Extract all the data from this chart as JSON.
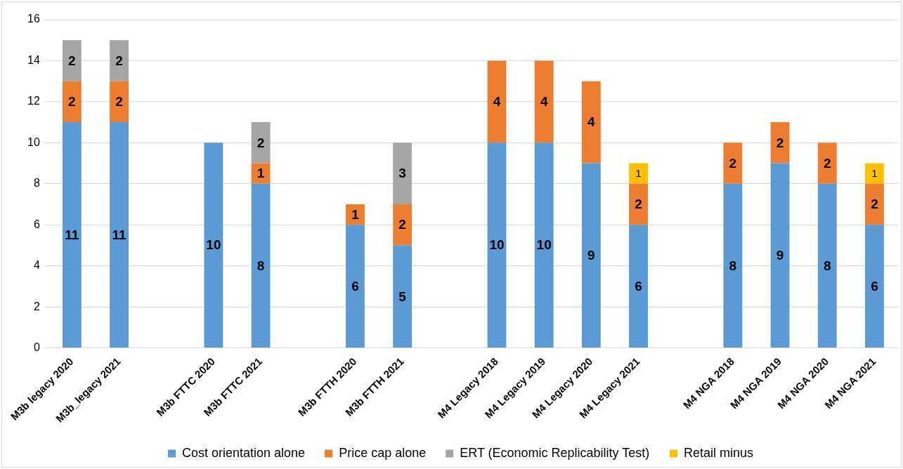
{
  "chart_data": {
    "type": "bar",
    "stacked": true,
    "data_labels": true,
    "grid": "y",
    "legend": "bottom",
    "categories": [
      "M3b legacy 2020",
      "M3b_legacy 2021",
      null,
      "M3b FTTC 2020",
      "M3b FTTC 2021",
      null,
      "M3b FTTH 2020",
      "M3b FTTH 2021",
      null,
      "M4 Legacy 2018",
      "M4 Legacy 2019",
      "M4 Legacy 2020",
      "M4 Legacy 2021",
      null,
      "M4 NGA 2018",
      "M4 NGA 2019",
      "M4 NGA 2020",
      "M4 NGA 2021"
    ],
    "ylim": [
      0,
      16
    ],
    "yticks": [
      0,
      2,
      4,
      6,
      8,
      10,
      12,
      14,
      16
    ],
    "series": [
      {
        "name": "Cost orientation alone",
        "color": "#5b9bd5",
        "values": [
          11,
          11,
          null,
          10,
          8,
          null,
          6,
          5,
          null,
          10,
          10,
          9,
          6,
          null,
          8,
          9,
          8,
          6
        ]
      },
      {
        "name": "Price cap alone",
        "color": "#ed7d31",
        "values": [
          2,
          2,
          null,
          null,
          1,
          null,
          1,
          2,
          null,
          4,
          4,
          4,
          2,
          null,
          2,
          2,
          2,
          2
        ]
      },
      {
        "name": "ERT (Economic Replicability Test)",
        "color": "#a5a5a5",
        "values": [
          2,
          2,
          null,
          null,
          2,
          null,
          null,
          3,
          null,
          null,
          null,
          null,
          null,
          null,
          null,
          null,
          null,
          null
        ]
      },
      {
        "name": "Retail minus",
        "color": "#ffc000",
        "values": [
          null,
          null,
          null,
          null,
          null,
          null,
          null,
          null,
          null,
          null,
          null,
          null,
          1,
          null,
          null,
          null,
          null,
          1
        ]
      }
    ]
  }
}
